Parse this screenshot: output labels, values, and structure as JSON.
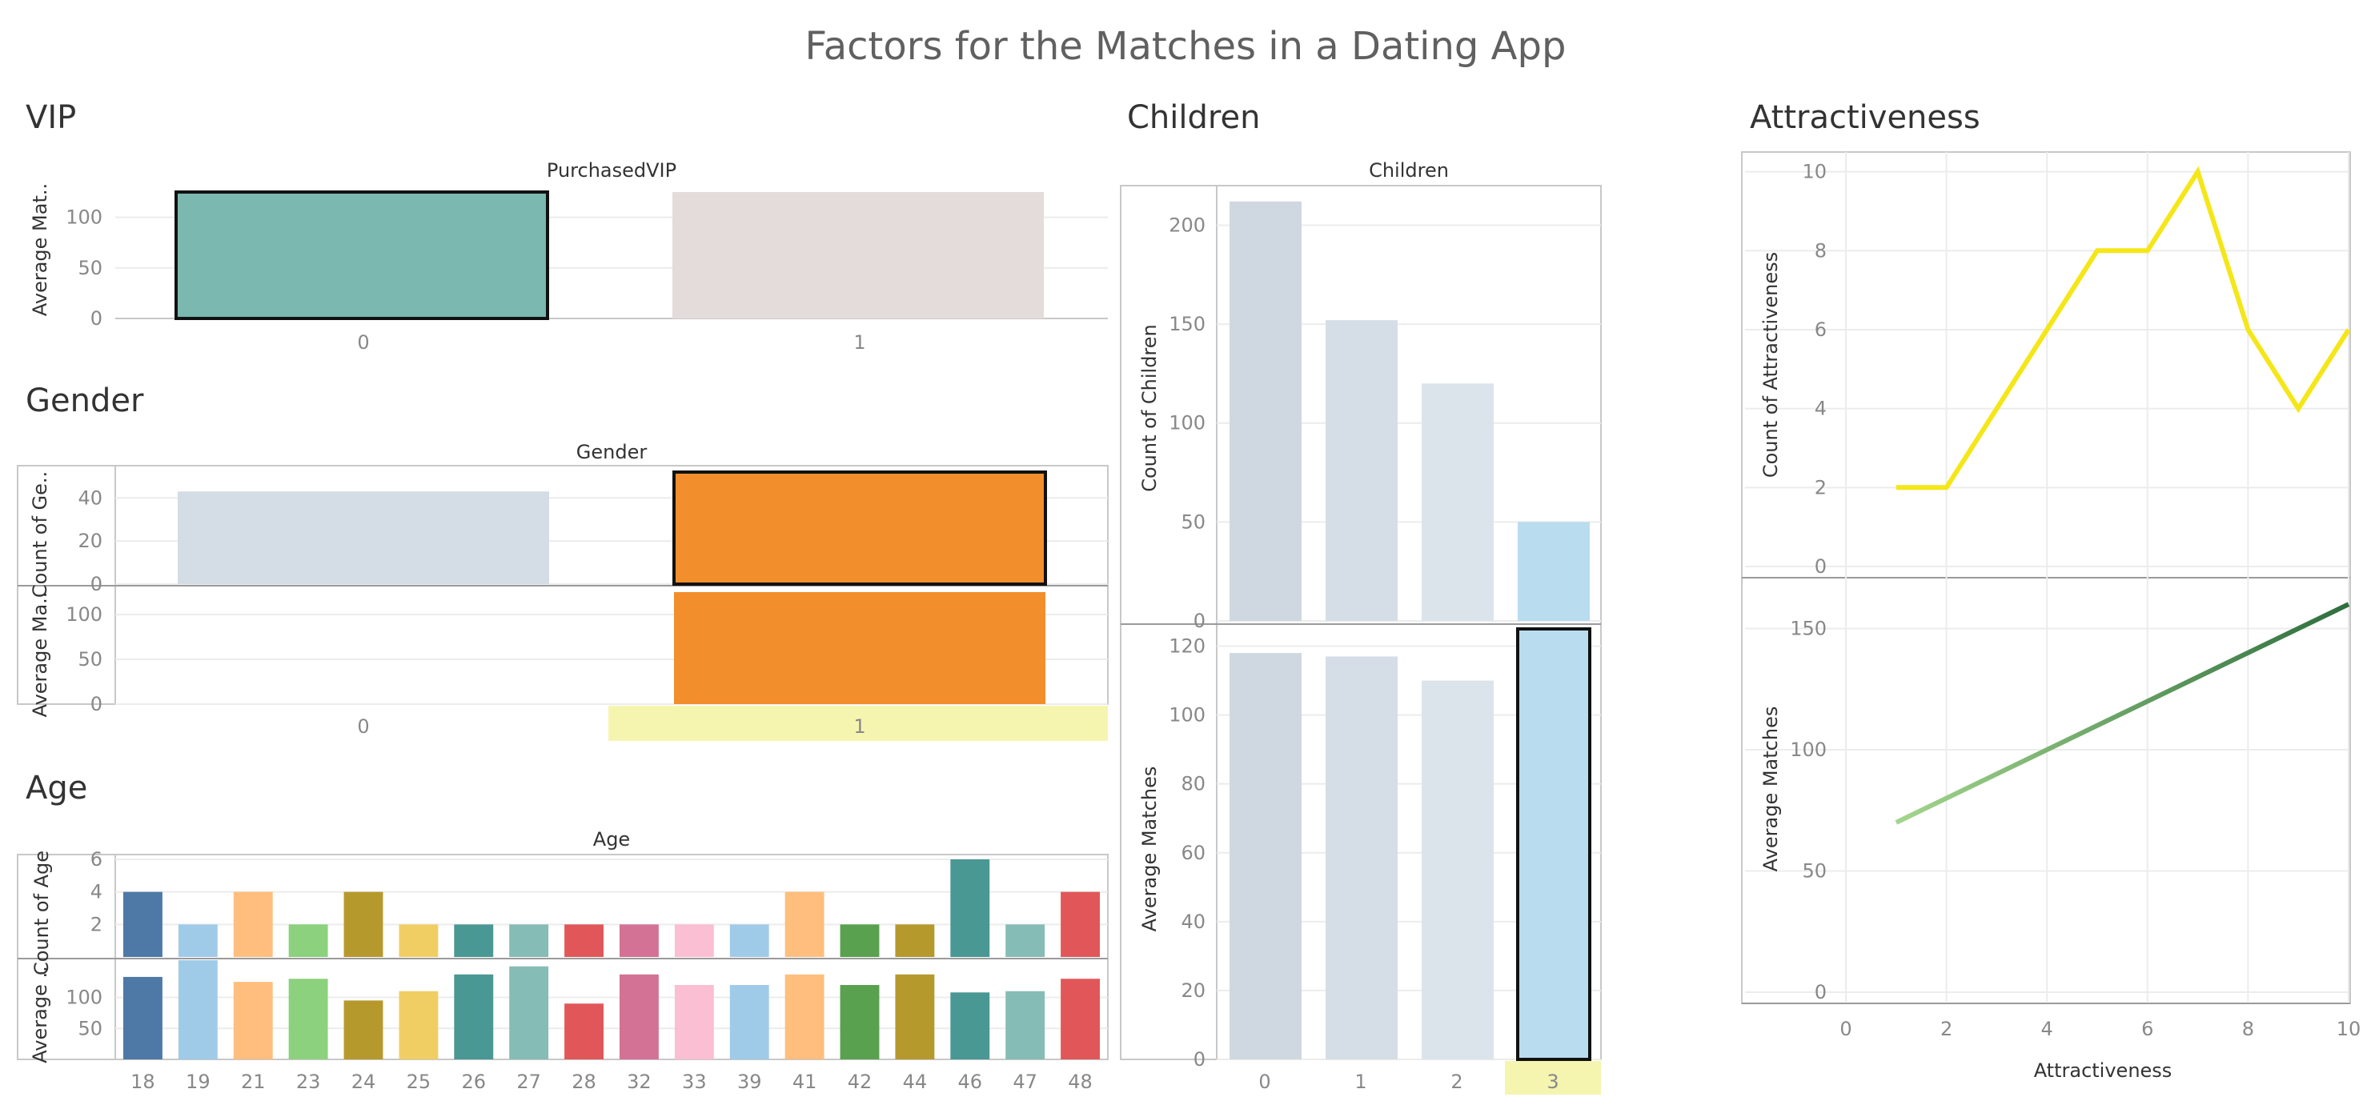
{
  "title": "Factors for the Matches in a Dating App",
  "sections": {
    "vip": "VIP",
    "gender": "Gender",
    "age": "Age",
    "children": "Children",
    "attractiveness": "Attractiveness"
  },
  "chart_data": [
    {
      "id": "vip",
      "type": "bar",
      "header": "PurchasedVIP",
      "categories": [
        "0",
        "1"
      ],
      "ylabel": "Average Mat..",
      "ylim": [
        0,
        125
      ],
      "yticks": [
        0,
        50,
        100
      ],
      "values": [
        125,
        125
      ],
      "colors": [
        "#7ab8b0",
        "#e4dcda"
      ],
      "selected": "0"
    },
    {
      "id": "gender",
      "type": "bar",
      "header": "Gender",
      "categories": [
        "0",
        "1"
      ],
      "highlighted_category": "1",
      "panels": [
        {
          "ylabel": "Count of Ge..",
          "ylim": [
            0,
            52
          ],
          "yticks": [
            0,
            20,
            40
          ],
          "values": [
            43,
            52
          ],
          "colors": [
            "#d4dde5",
            "#f28e2b"
          ]
        },
        {
          "ylabel": "Average Ma..",
          "ylim": [
            0,
            125
          ],
          "yticks": [
            0,
            50,
            100
          ],
          "values": [
            0,
            125
          ],
          "colors": [
            "#d4dde5",
            "#f28e2b"
          ]
        }
      ],
      "selected": "1"
    },
    {
      "id": "age",
      "type": "bar",
      "header": "Age",
      "categories": [
        "18",
        "19",
        "21",
        "23",
        "24",
        "25",
        "26",
        "27",
        "28",
        "32",
        "33",
        "39",
        "41",
        "42",
        "44",
        "46",
        "47",
        "48"
      ],
      "colors": [
        "#4e79a7",
        "#a0cbe8",
        "#ffbe7d",
        "#8cd17d",
        "#b6992d",
        "#f1ce63",
        "#499894",
        "#86bcb6",
        "#e15759",
        "#d37295",
        "#fabfd2",
        "#a0cbe8",
        "#ffbe7d",
        "#59a14f",
        "#b6992d",
        "#499894",
        "#86bcb6",
        "#e15759"
      ],
      "panels": [
        {
          "ylabel": "Count of Age",
          "ylim": [
            0,
            6
          ],
          "yticks": [
            2,
            4,
            6
          ],
          "values": [
            4,
            2,
            4,
            2,
            4,
            2,
            2,
            2,
            2,
            2,
            2,
            2,
            4,
            2,
            2,
            6,
            2,
            4
          ]
        },
        {
          "ylabel": "Average ..",
          "ylim": [
            0,
            160
          ],
          "yticks": [
            50,
            100
          ],
          "values": [
            133,
            160,
            125,
            130,
            95,
            110,
            137,
            150,
            90,
            137,
            120,
            120,
            137,
            120,
            137,
            108,
            110,
            130
          ]
        }
      ]
    },
    {
      "id": "children",
      "type": "bar",
      "header": "Children",
      "categories": [
        "0",
        "1",
        "2",
        "3"
      ],
      "highlighted_category": "3",
      "colors": [
        "#cfd8e1",
        "#d5dee6",
        "#dce4eb",
        "#b9dcef"
      ],
      "panels": [
        {
          "ylabel": "Count of Children",
          "ylim": [
            0,
            220
          ],
          "yticks": [
            0,
            50,
            100,
            150,
            200
          ],
          "values": [
            212,
            152,
            120,
            50
          ]
        },
        {
          "ylabel": "Average Matches",
          "ylim": [
            0,
            125
          ],
          "yticks": [
            0,
            20,
            40,
            60,
            80,
            100,
            120
          ],
          "values": [
            118,
            117,
            110,
            125
          ]
        }
      ],
      "selected": "3"
    },
    {
      "id": "attractiveness",
      "type": "line",
      "xlabel": "Attractiveness",
      "xlim": [
        0,
        10
      ],
      "xticks": [
        0,
        2,
        4,
        6,
        8,
        10
      ],
      "panels": [
        {
          "ylabel": "Count of Attractiveness",
          "ylim": [
            0,
            10.5
          ],
          "yticks": [
            0,
            2,
            4,
            6,
            8,
            10
          ],
          "color": "#f5e617",
          "x": [
            1,
            2,
            3,
            4,
            5,
            6,
            7,
            8,
            9,
            10
          ],
          "y": [
            2,
            2,
            4,
            6,
            8,
            8,
            10,
            6,
            4,
            6
          ]
        },
        {
          "ylabel": "Average Matches",
          "ylim": [
            0,
            165
          ],
          "yticks": [
            0,
            50,
            100,
            150
          ],
          "color_start": "#a3d68c",
          "color_end": "#2e6e3e",
          "x": [
            1,
            10
          ],
          "y": [
            70,
            160
          ]
        }
      ]
    }
  ]
}
